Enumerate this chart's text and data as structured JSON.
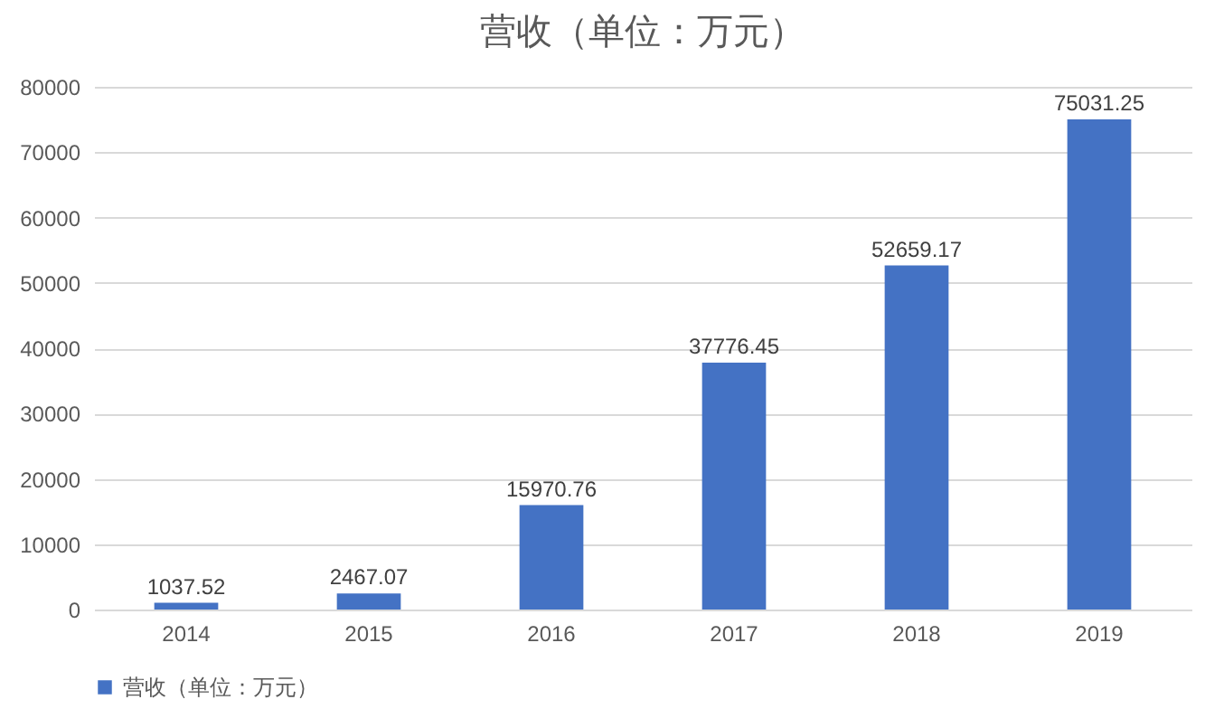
{
  "chart_data": {
    "type": "bar",
    "title": "营收（单位：万元）",
    "categories": [
      "2014",
      "2015",
      "2016",
      "2017",
      "2018",
      "2019"
    ],
    "series": [
      {
        "name": "营收（单位：万元）",
        "color": "#4472c4",
        "values": [
          1037.52,
          2467.07,
          15970.76,
          37776.45,
          52659.17,
          75031.25
        ]
      }
    ],
    "ylim": [
      0,
      80000
    ],
    "yticks": [
      0,
      10000,
      20000,
      30000,
      40000,
      50000,
      60000,
      70000,
      80000
    ],
    "grid": "y",
    "legend": "bottom",
    "data_labels": true
  }
}
